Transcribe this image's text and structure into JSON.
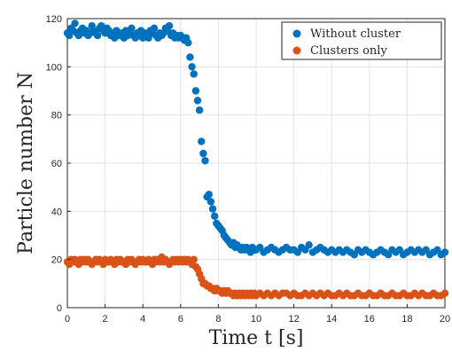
{
  "chart_data": {
    "type": "scatter",
    "xlabel": "Time t [s]",
    "ylabel": "Particle number N",
    "xlim": [
      0,
      20
    ],
    "ylim": [
      0,
      120
    ],
    "xticks": [
      0,
      2,
      4,
      6,
      8,
      10,
      12,
      14,
      16,
      18,
      20
    ],
    "yticks": [
      0,
      20,
      40,
      60,
      80,
      100,
      120
    ],
    "grid": true,
    "legend_position": "top-right",
    "series": [
      {
        "name": "Without cluster",
        "color": "#0072BD",
        "x": [
          0.0,
          0.1,
          0.2,
          0.3,
          0.4,
          0.5,
          0.6,
          0.7,
          0.8,
          0.9,
          1.0,
          1.1,
          1.2,
          1.3,
          1.4,
          1.5,
          1.6,
          1.7,
          1.8,
          1.9,
          2.0,
          2.1,
          2.2,
          2.3,
          2.4,
          2.5,
          2.6,
          2.7,
          2.8,
          2.9,
          3.0,
          3.1,
          3.2,
          3.3,
          3.4,
          3.5,
          3.6,
          3.7,
          3.8,
          3.9,
          4.0,
          4.1,
          4.2,
          4.3,
          4.4,
          4.5,
          4.6,
          4.7,
          4.8,
          4.9,
          5.0,
          5.1,
          5.2,
          5.3,
          5.4,
          5.5,
          5.6,
          5.7,
          5.8,
          5.9,
          6.0,
          6.1,
          6.2,
          6.3,
          6.4,
          6.5,
          6.6,
          6.7,
          6.8,
          6.9,
          7.0,
          7.1,
          7.2,
          7.3,
          7.4,
          7.5,
          7.6,
          7.7,
          7.8,
          7.9,
          8.0,
          8.1,
          8.2,
          8.3,
          8.4,
          8.5,
          8.6,
          8.7,
          8.8,
          8.9,
          9.0,
          9.1,
          9.2,
          9.3,
          9.4,
          9.5,
          9.6,
          9.7,
          9.8,
          9.9,
          10.0,
          10.2,
          10.4,
          10.6,
          10.8,
          11.0,
          11.2,
          11.4,
          11.6,
          11.8,
          12.0,
          12.2,
          12.4,
          12.6,
          12.8,
          13.0,
          13.2,
          13.4,
          13.6,
          13.8,
          14.0,
          14.2,
          14.4,
          14.6,
          14.8,
          15.0,
          15.2,
          15.4,
          15.6,
          15.8,
          16.0,
          16.2,
          16.4,
          16.6,
          16.8,
          17.0,
          17.2,
          17.4,
          17.6,
          17.8,
          18.0,
          18.2,
          18.4,
          18.6,
          18.8,
          19.0,
          19.2,
          19.4,
          19.6,
          19.8,
          20.0
        ],
        "y": [
          114,
          113,
          116,
          115,
          118,
          114,
          113,
          115,
          116,
          114,
          115,
          113,
          114,
          117,
          115,
          114,
          113,
          116,
          117,
          115,
          114,
          116,
          115,
          113,
          114,
          112,
          115,
          114,
          113,
          114,
          112,
          115,
          113,
          114,
          116,
          113,
          112,
          114,
          113,
          115,
          112,
          114,
          113,
          112,
          115,
          114,
          116,
          113,
          112,
          114,
          113,
          114,
          116,
          115,
          117,
          113,
          114,
          112,
          113,
          112,
          113,
          112,
          111,
          112,
          110,
          104,
          100,
          97,
          90,
          86,
          82,
          69,
          64,
          61,
          46,
          47,
          44,
          41,
          38,
          35,
          34,
          33,
          32,
          30,
          29,
          28,
          27,
          26,
          27,
          25,
          26,
          25,
          24,
          25,
          24,
          25,
          24,
          23,
          25,
          24,
          24,
          25,
          23,
          24,
          25,
          24,
          23,
          24,
          25,
          24,
          24,
          23,
          25,
          24,
          26,
          23,
          24,
          25,
          24,
          23,
          24,
          23,
          24,
          23,
          24,
          23,
          22,
          24,
          23,
          24,
          23,
          22,
          23,
          24,
          23,
          22,
          24,
          23,
          24,
          22,
          23,
          24,
          23,
          24,
          23,
          24,
          22,
          23,
          24,
          22,
          23
        ]
      },
      {
        "name": "Clusters only",
        "color": "#D95319",
        "x": [
          0.0,
          0.1,
          0.2,
          0.3,
          0.4,
          0.5,
          0.6,
          0.7,
          0.8,
          0.9,
          1.0,
          1.1,
          1.2,
          1.3,
          1.4,
          1.5,
          1.6,
          1.7,
          1.8,
          1.9,
          2.0,
          2.1,
          2.2,
          2.3,
          2.4,
          2.5,
          2.6,
          2.7,
          2.8,
          2.9,
          3.0,
          3.1,
          3.2,
          3.3,
          3.4,
          3.5,
          3.6,
          3.7,
          3.8,
          3.9,
          4.0,
          4.1,
          4.2,
          4.3,
          4.4,
          4.5,
          4.6,
          4.7,
          4.8,
          4.9,
          5.0,
          5.1,
          5.2,
          5.3,
          5.4,
          5.5,
          5.6,
          5.7,
          5.8,
          5.9,
          6.0,
          6.1,
          6.2,
          6.3,
          6.4,
          6.5,
          6.6,
          6.7,
          6.8,
          6.9,
          7.0,
          7.1,
          7.2,
          7.3,
          7.4,
          7.5,
          7.6,
          7.7,
          7.8,
          7.9,
          8.0,
          8.1,
          8.2,
          8.3,
          8.4,
          8.5,
          8.6,
          8.7,
          8.8,
          8.9,
          9.0,
          9.1,
          9.2,
          9.3,
          9.4,
          9.5,
          9.6,
          9.7,
          9.8,
          9.9,
          10.0,
          10.2,
          10.4,
          10.6,
          10.8,
          11.0,
          11.2,
          11.4,
          11.6,
          11.8,
          12.0,
          12.2,
          12.4,
          12.6,
          12.8,
          13.0,
          13.2,
          13.4,
          13.6,
          13.8,
          14.0,
          14.2,
          14.4,
          14.6,
          14.8,
          15.0,
          15.2,
          15.4,
          15.6,
          15.8,
          16.0,
          16.2,
          16.4,
          16.6,
          16.8,
          17.0,
          17.2,
          17.4,
          17.6,
          17.8,
          18.0,
          18.2,
          18.4,
          18.6,
          18.8,
          19.0,
          19.2,
          19.4,
          19.6,
          19.8,
          20.0
        ],
        "y": [
          19,
          18,
          20,
          19,
          20,
          19,
          18,
          20,
          19,
          20,
          19,
          20,
          19,
          18,
          19,
          20,
          19,
          20,
          19,
          18,
          20,
          19,
          19,
          20,
          19,
          18,
          20,
          19,
          20,
          19,
          19,
          18,
          20,
          19,
          20,
          19,
          18,
          19,
          20,
          19,
          20,
          19,
          19,
          20,
          19,
          18,
          20,
          19,
          20,
          19,
          21,
          19,
          20,
          19,
          18,
          19,
          20,
          19,
          20,
          19,
          20,
          19,
          20,
          19,
          20,
          19,
          18,
          20,
          17,
          16,
          14,
          12,
          10,
          10,
          9,
          9,
          8,
          8,
          7,
          8,
          7,
          7,
          6,
          7,
          6,
          7,
          6,
          6,
          5,
          6,
          5,
          6,
          5,
          6,
          5,
          6,
          5,
          6,
          5,
          6,
          5,
          6,
          5,
          6,
          5,
          6,
          5,
          6,
          6,
          5,
          6,
          5,
          5,
          6,
          5,
          6,
          5,
          6,
          5,
          6,
          5,
          5,
          6,
          5,
          6,
          5,
          5,
          6,
          5,
          5,
          6,
          5,
          5,
          6,
          5,
          5,
          6,
          5,
          5,
          6,
          5,
          5,
          6,
          5,
          6,
          5,
          5,
          6,
          5,
          5,
          6
        ]
      }
    ]
  }
}
